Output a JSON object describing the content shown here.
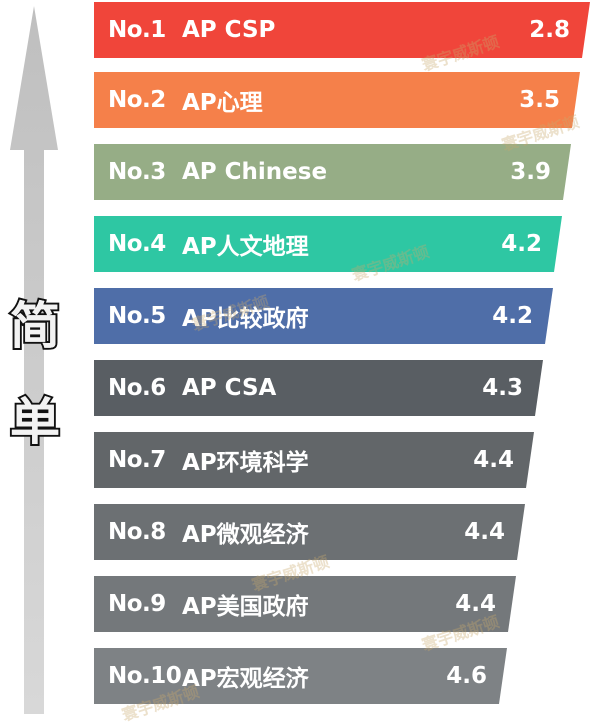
{
  "side_label": [
    "简",
    "单"
  ],
  "rows": [
    {
      "rank": "No.1",
      "name": "AP CSP",
      "score": "2.8",
      "color": "#f0453a"
    },
    {
      "rank": "No.2",
      "name": "AP心理",
      "score": "3.5",
      "color": "#f5804a"
    },
    {
      "rank": "No.3",
      "name": "AP Chinese",
      "score": "3.9",
      "color": "#96ad86"
    },
    {
      "rank": "No.4",
      "name": "AP人文地理",
      "score": "4.2",
      "color": "#2ec7a3"
    },
    {
      "rank": "No.5",
      "name": "AP比较政府",
      "score": "4.2",
      "color": "#4f6ea8"
    },
    {
      "rank": "No.6",
      "name": "AP CSA",
      "score": "4.3",
      "color": "#595e63"
    },
    {
      "rank": "No.7",
      "name": "AP环境科学",
      "score": "4.4",
      "color": "#626669"
    },
    {
      "rank": "No.8",
      "name": "AP微观经济",
      "score": "4.4",
      "color": "#6c7073"
    },
    {
      "rank": "No.9",
      "name": "AP美国政府",
      "score": "4.4",
      "color": "#74787b"
    },
    {
      "rank": "No.10",
      "name": "AP宏观经济",
      "score": "4.6",
      "color": "#7e8285"
    }
  ],
  "watermark": "寰宇威斯顿"
}
